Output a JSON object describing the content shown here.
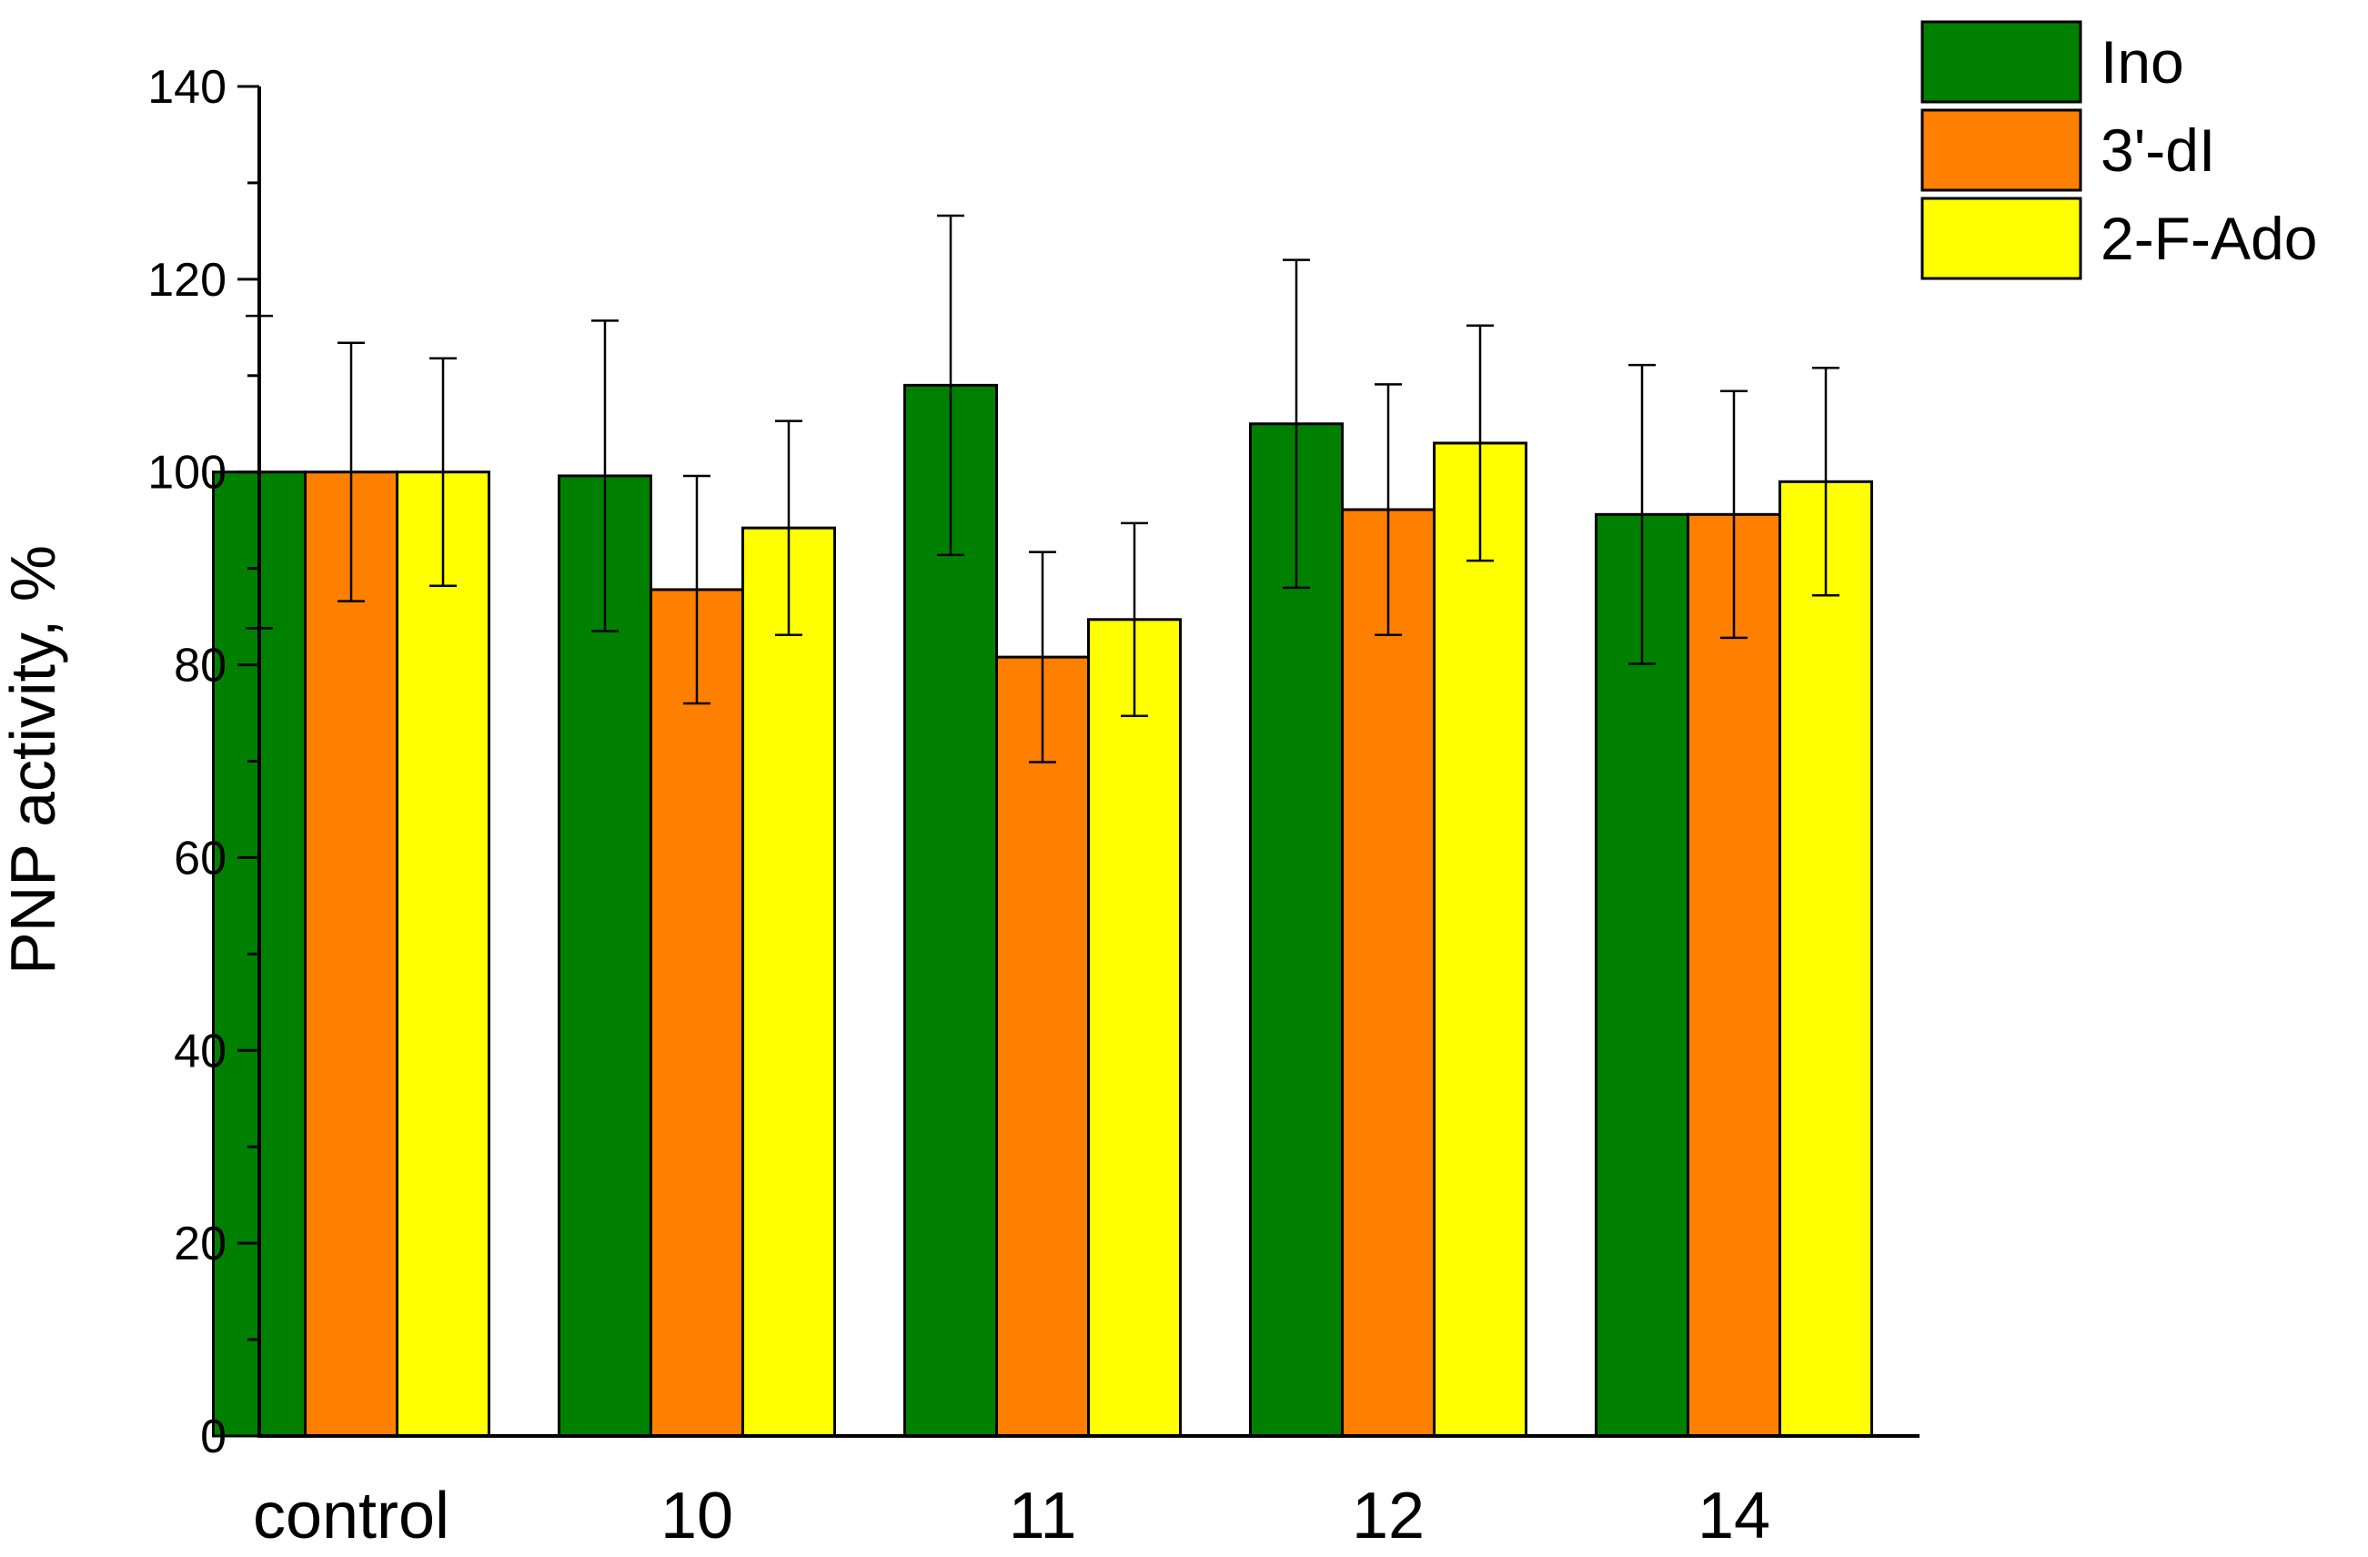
{
  "chart_data": {
    "type": "bar",
    "title": "",
    "xlabel": "",
    "ylabel": "PNP activity, %",
    "ylim": [
      0,
      140
    ],
    "yticks": [
      0,
      20,
      40,
      60,
      80,
      100,
      120,
      140
    ],
    "ytick_labels": [
      "0",
      "20",
      "40",
      "60",
      "80",
      "100",
      "120",
      "140"
    ],
    "categories": [
      "control",
      "10",
      "11",
      "12",
      "14"
    ],
    "series": [
      {
        "name": "Ino",
        "color": "#008000",
        "values": [
          100,
          99.6,
          109,
          105,
          95.6
        ],
        "errors": [
          16.2,
          16.1,
          17.6,
          17,
          15.5
        ]
      },
      {
        "name": "3'-dI",
        "color": "#ff8000",
        "values": [
          100,
          87.8,
          80.8,
          96.1,
          95.6
        ],
        "errors": [
          13.4,
          11.8,
          10.9,
          13,
          12.8
        ]
      },
      {
        "name": "2-F-Ado",
        "color": "#ffff00",
        "values": [
          100,
          94.2,
          84.7,
          103,
          99
        ],
        "errors": [
          11.8,
          11.1,
          10,
          12.2,
          11.8
        ]
      }
    ],
    "legend": {
      "position": "top-right"
    },
    "grid": false
  }
}
